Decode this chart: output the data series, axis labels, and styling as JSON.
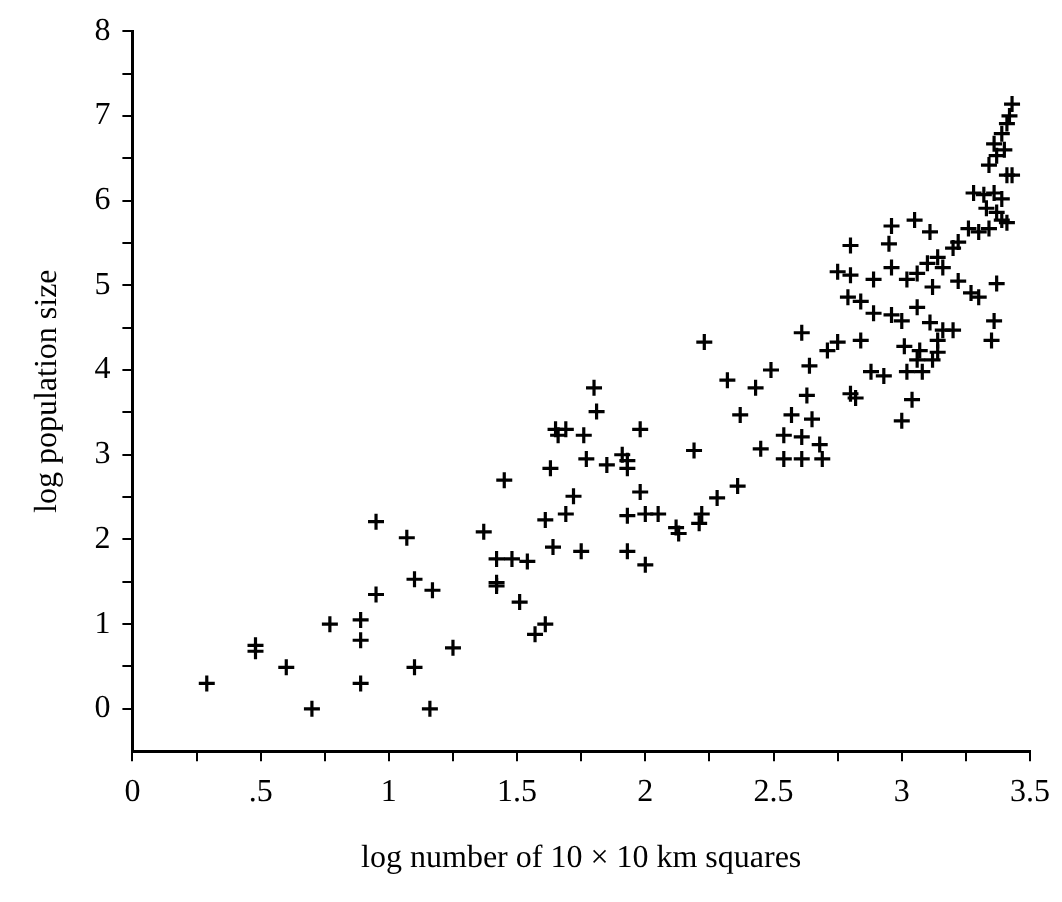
{
  "chart_data": {
    "type": "scatter",
    "xlabel": "log number of 10 × 10 km squares",
    "ylabel": "log population size",
    "marker": "cross",
    "xlim": [
      0,
      3.5
    ],
    "ylim": [
      -0.5,
      8
    ],
    "xticks": [
      0,
      {
        "value": 0.25,
        "label": null
      },
      {
        "value": 0.5,
        "label": ".5"
      },
      {
        "value": 0.75,
        "label": null
      },
      1,
      {
        "value": 1.25,
        "label": null
      },
      1.5,
      {
        "value": 1.75,
        "label": null
      },
      2,
      {
        "value": 2.25,
        "label": null
      },
      2.5,
      {
        "value": 2.75,
        "label": null
      },
      3,
      {
        "value": 3.25,
        "label": null
      },
      3.5
    ],
    "yticks": [
      0,
      {
        "value": 0.5,
        "label": null
      },
      1,
      {
        "value": 1.5,
        "label": null
      },
      2,
      {
        "value": 2.5,
        "label": null
      },
      3,
      {
        "value": 3.5,
        "label": null
      },
      4,
      {
        "value": 4.5,
        "label": null
      },
      5,
      {
        "value": 5.5,
        "label": null
      },
      6,
      {
        "value": 6.5,
        "label": null
      },
      7,
      {
        "value": 7.5,
        "label": null
      },
      8
    ],
    "series": [
      {
        "color": "#000000",
        "x": [
          0.29,
          0.48,
          0.48,
          0.6,
          0.7,
          0.77,
          0.89,
          0.89,
          0.89,
          0.95,
          0.95,
          1.07,
          1.1,
          1.17,
          1.1,
          1.16,
          1.25,
          1.37,
          1.45,
          1.42,
          1.48,
          1.54,
          1.42,
          1.42,
          1.51,
          1.57,
          1.61,
          1.63,
          1.65,
          1.69,
          1.66,
          1.76,
          1.8,
          1.81,
          1.77,
          1.72,
          1.61,
          1.69,
          1.64,
          1.75,
          1.85,
          1.91,
          1.93,
          1.93,
          1.98,
          1.98,
          1.93,
          2.0,
          2.05,
          1.93,
          2.0,
          2.12,
          2.13,
          2.22,
          2.21,
          2.28,
          2.36,
          2.19,
          2.23,
          2.32,
          2.43,
          2.49,
          2.37,
          2.45,
          2.61,
          2.64,
          2.63,
          2.57,
          2.65,
          2.54,
          2.61,
          2.54,
          2.61,
          2.69,
          2.68,
          2.71,
          2.75,
          2.84,
          2.8,
          2.82,
          2.88,
          2.93,
          3.04,
          3.0,
          2.8,
          2.75,
          2.8,
          2.89,
          2.79,
          2.84,
          2.89,
          2.96,
          2.96,
          3.02,
          2.95,
          2.96,
          3.05,
          3.11,
          3.0,
          3.06,
          3.11,
          3.16,
          3.01,
          3.07,
          3.14,
          3.02,
          3.08,
          3.14,
          3.2,
          3.22,
          3.27,
          3.3,
          3.37,
          3.36,
          3.35,
          3.06,
          3.1,
          3.14,
          3.2,
          3.22,
          3.26,
          3.3,
          3.34,
          3.39,
          3.16,
          3.12,
          3.28,
          3.32,
          3.36,
          3.39,
          3.33,
          3.37,
          3.41,
          3.41,
          3.43,
          3.34,
          3.37,
          3.4,
          3.36,
          3.39,
          3.41,
          3.42,
          3.43,
          3.06,
          3.12
        ],
        "values": [
          0.3,
          0.75,
          0.68,
          0.49,
          0.0,
          1.0,
          1.05,
          0.81,
          0.3,
          1.35,
          2.21,
          2.02,
          1.53,
          1.4,
          0.49,
          0.0,
          0.72,
          2.09,
          2.7,
          1.77,
          1.77,
          1.74,
          1.49,
          1.45,
          1.26,
          0.88,
          1.0,
          2.84,
          3.3,
          3.3,
          3.23,
          3.23,
          3.79,
          3.51,
          2.95,
          2.51,
          2.23,
          2.3,
          1.91,
          1.86,
          2.88,
          3.0,
          2.93,
          2.84,
          3.3,
          2.56,
          2.28,
          2.3,
          2.3,
          1.86,
          1.7,
          2.14,
          2.07,
          2.3,
          2.19,
          2.49,
          2.63,
          3.05,
          4.33,
          3.88,
          3.79,
          4.0,
          3.47,
          3.07,
          4.44,
          4.05,
          3.7,
          3.47,
          3.42,
          3.23,
          3.21,
          2.95,
          2.95,
          2.95,
          3.12,
          4.23,
          4.33,
          4.35,
          3.72,
          3.67,
          3.98,
          3.93,
          3.65,
          3.4,
          5.47,
          5.16,
          5.12,
          5.07,
          4.86,
          4.81,
          4.67,
          4.65,
          5.21,
          5.07,
          5.49,
          5.7,
          5.77,
          5.63,
          4.58,
          4.74,
          4.56,
          4.47,
          4.28,
          4.23,
          4.21,
          3.98,
          3.98,
          4.35,
          4.47,
          5.05,
          4.91,
          4.86,
          5.02,
          4.58,
          4.35,
          5.14,
          5.26,
          5.33,
          5.44,
          5.51,
          5.67,
          5.63,
          5.67,
          5.77,
          5.21,
          4.98,
          6.09,
          6.07,
          6.09,
          6.02,
          5.91,
          5.86,
          5.74,
          6.3,
          6.3,
          6.42,
          6.53,
          6.6,
          6.67,
          6.79,
          6.91,
          7.0,
          7.14,
          4.12,
          4.12
        ]
      }
    ]
  }
}
